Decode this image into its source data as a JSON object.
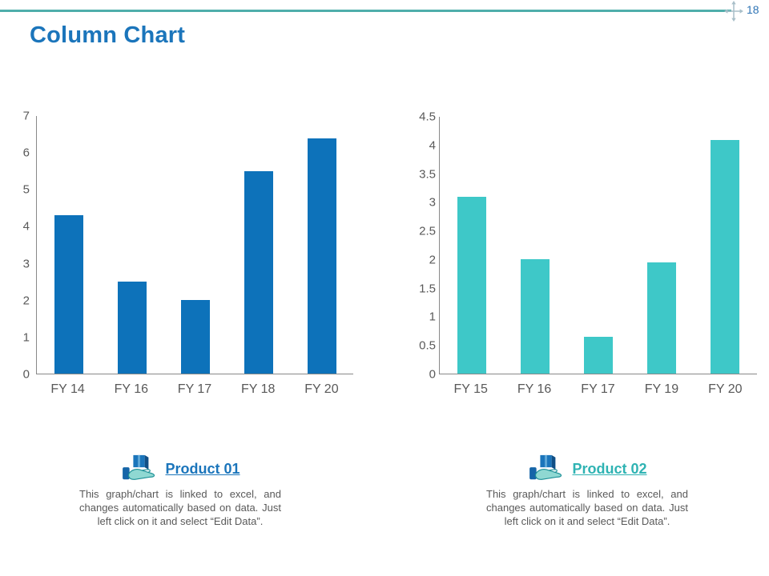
{
  "page": {
    "number": "18",
    "title": "Column Chart"
  },
  "colors": {
    "title_blue": "#1B75BB",
    "page_number_blue": "#2E74B5",
    "top_line_teal": "#4FAEAB",
    "bar_blue": "#0D72BA",
    "bar_teal": "#3EC8C8",
    "axis_gray": "#898989",
    "label_gray": "#595959",
    "product01_blue": "#1B75BB",
    "product02_teal": "#2FB3B3"
  },
  "chart_data": [
    {
      "type": "bar",
      "title": "",
      "xlabel": "",
      "ylabel": "",
      "categories": [
        "FY 14",
        "FY 16",
        "FY 17",
        "FY 18",
        "FY 20"
      ],
      "values": [
        4.3,
        2.5,
        2.0,
        5.5,
        6.4
      ],
      "ylim": [
        0,
        7
      ],
      "ytick_step": 1,
      "bar_color": "#0D72BA",
      "grid": false,
      "legend": "none"
    },
    {
      "type": "bar",
      "title": "",
      "xlabel": "",
      "ylabel": "",
      "categories": [
        "FY 15",
        "FY 16",
        "FY 17",
        "FY 19",
        "FY 20"
      ],
      "values": [
        3.1,
        2.0,
        0.65,
        1.95,
        4.1
      ],
      "ylim": [
        0,
        4.5
      ],
      "ytick_step": 0.5,
      "bar_color": "#3EC8C8",
      "grid": false,
      "legend": "none"
    }
  ],
  "products": [
    {
      "name": "Product 01",
      "name_color": "#1B75BB",
      "description": "This graph/chart is linked to excel, and changes automatically based on data. Just left click on it and select “Edit Data”."
    },
    {
      "name": "Product 02",
      "name_color": "#2FB3B3",
      "description": "This graph/chart is linked to excel, and changes automatically based on data. Just left click on it and select “Edit Data”."
    }
  ]
}
